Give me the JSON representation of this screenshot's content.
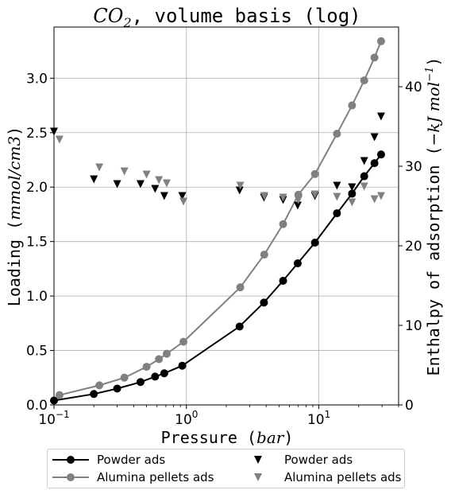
{
  "chart_data": {
    "type": "line",
    "title_main": "CO",
    "title_sub": "2",
    "title_rest": ", volume basis (log)",
    "xlabel_text": "Pressure (",
    "xlabel_unit": "bar",
    "xlabel_close": ")",
    "ylabel_text": "Loading (",
    "ylabel_unit": "mmol/cm3",
    "ylabel_close": ")",
    "y2label_text": "Enthalpy of adsorption (",
    "y2label_unit": "−kJ mol",
    "y2label_exp": "−1",
    "y2label_close": ")",
    "x_scale": "log",
    "xlim": [
      0.1,
      40
    ],
    "ylim": [
      0,
      3.47
    ],
    "y2lim": [
      0,
      47.5
    ],
    "x_ticks": [
      {
        "value": 0.1,
        "base": "10",
        "exp": "−1"
      },
      {
        "value": 1,
        "base": "10",
        "exp": "0"
      },
      {
        "value": 10,
        "base": "10",
        "exp": "1"
      }
    ],
    "y_ticks": [
      "0.0",
      "0.5",
      "1.0",
      "1.5",
      "2.0",
      "2.5",
      "3.0"
    ],
    "y2_ticks": [
      "0",
      "10",
      "20",
      "30",
      "40"
    ],
    "grid": true,
    "legend_position": "below",
    "series": [
      {
        "name": "Powder ads",
        "axis": "left",
        "kind": "line-circle",
        "color": "#000000",
        "x": [
          0.1,
          0.2,
          0.3,
          0.45,
          0.58,
          0.68,
          0.93,
          2.52,
          3.85,
          5.37,
          6.92,
          9.34,
          13.7,
          17.8,
          22.0,
          26.3,
          29.5
        ],
        "y": [
          0.04,
          0.1,
          0.15,
          0.21,
          0.26,
          0.29,
          0.36,
          0.72,
          0.94,
          1.14,
          1.3,
          1.49,
          1.76,
          1.94,
          2.1,
          2.22,
          2.3
        ]
      },
      {
        "name": "Alumina pellets ads",
        "axis": "left",
        "kind": "line-circle",
        "color": "#808080",
        "x": [
          0.11,
          0.22,
          0.34,
          0.5,
          0.62,
          0.71,
          0.95,
          2.55,
          3.87,
          5.37,
          7.0,
          9.34,
          13.7,
          17.8,
          22.0,
          26.3,
          29.5
        ],
        "y": [
          0.09,
          0.18,
          0.25,
          0.35,
          0.42,
          0.47,
          0.58,
          1.08,
          1.38,
          1.66,
          1.93,
          2.12,
          2.49,
          2.75,
          2.98,
          3.19,
          3.34
        ]
      },
      {
        "name": "Powder ads",
        "axis": "right",
        "kind": "triangle",
        "color": "#000000",
        "x": [
          0.1,
          0.2,
          0.3,
          0.45,
          0.58,
          0.68,
          0.93,
          2.52,
          3.85,
          5.37,
          6.92,
          9.34,
          13.7,
          17.8,
          22.0,
          26.3,
          29.5
        ],
        "y": [
          34.4,
          28.4,
          27.8,
          27.8,
          27.2,
          26.3,
          26.3,
          27.0,
          26.1,
          25.8,
          25.1,
          26.3,
          27.6,
          27.4,
          30.7,
          33.7,
          36.3
        ]
      },
      {
        "name": "Alumina pellets ads",
        "axis": "right",
        "kind": "triangle",
        "color": "#808080",
        "x": [
          0.11,
          0.22,
          0.34,
          0.5,
          0.62,
          0.71,
          0.95,
          2.55,
          3.87,
          5.37,
          7.0,
          9.34,
          13.7,
          17.8,
          22.0,
          26.3,
          29.5
        ],
        "y": [
          33.4,
          29.9,
          29.4,
          29.0,
          28.3,
          27.9,
          25.6,
          27.6,
          26.3,
          26.1,
          25.8,
          26.5,
          26.2,
          25.5,
          27.5,
          25.9,
          26.3
        ]
      }
    ]
  }
}
